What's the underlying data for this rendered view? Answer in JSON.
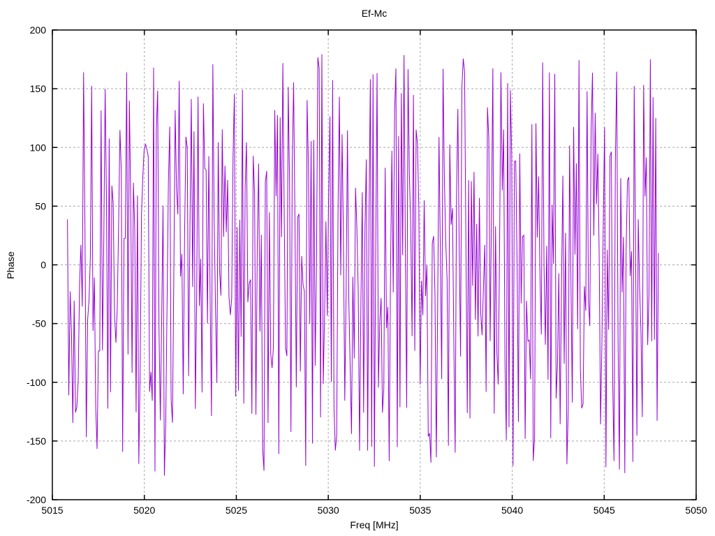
{
  "chart": {
    "title": "Ef-Mc",
    "xlabel": "Freq [MHz]",
    "ylabel": "Phase"
  },
  "chart_data": {
    "type": "line",
    "title": "Ef-Mc",
    "xlabel": "Freq [MHz]",
    "ylabel": "Phase",
    "xlim": [
      5015,
      5050
    ],
    "ylim": [
      -200,
      200
    ],
    "xticks": [
      5015,
      5020,
      5025,
      5030,
      5035,
      5040,
      5045,
      5050
    ],
    "yticks": [
      -200,
      -150,
      -100,
      -50,
      0,
      50,
      100,
      150,
      200
    ],
    "grid": true,
    "grid_style": "dashed",
    "legend": "none",
    "colors": {
      "series": "#9400d3",
      "grid": "#a8a8a8",
      "border": "#000000",
      "background": "#ffffff"
    },
    "series": [
      {
        "name": "phase",
        "color": "#9400d3",
        "description": "Dense pseudo-random phase noise; values uniformly distributed across -180..180 degrees over the frequency span",
        "x_start": 5015.82,
        "x_end": 5047.95,
        "n_points": 440,
        "distribution": "uniform",
        "value_range": [
          -180,
          180
        ],
        "seed": 1234567
      }
    ]
  }
}
